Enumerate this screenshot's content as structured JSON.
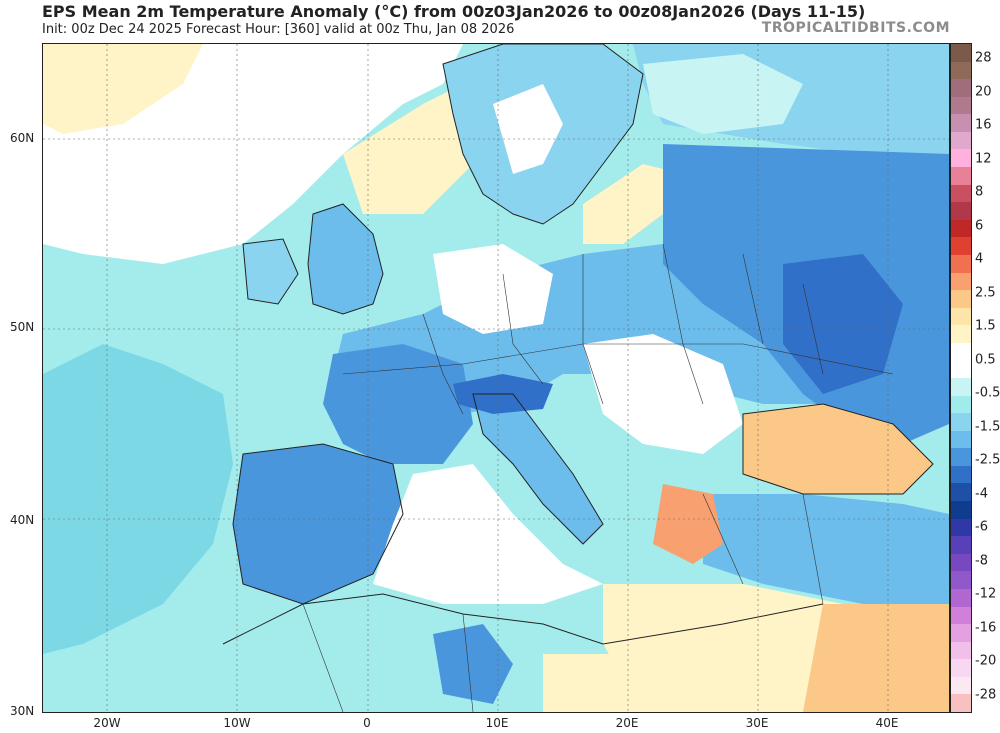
{
  "header": {
    "title": "EPS Mean 2m Temperature Anomaly (°C) from 00z03Jan2026 to 00z08Jan2026 (Days 11-15)",
    "subtitle": "Init: 00z Dec 24 2025   Forecast Hour: [360]   valid at 00z Thu, Jan 08 2026",
    "brand": "TROPICALTIDBITS.COM"
  },
  "axes": {
    "lat_labels": [
      "60N",
      "50N",
      "40N",
      "30N"
    ],
    "lon_labels": [
      "20W",
      "10W",
      "0",
      "10E",
      "20E",
      "30E",
      "40E"
    ]
  },
  "colorbar": {
    "labels": [
      "28",
      "20",
      "16",
      "12",
      "8",
      "6",
      "4",
      "2.5",
      "1.5",
      "0.5",
      "-0.5",
      "-1.5",
      "-2.5",
      "-4",
      "-6",
      "-8",
      "-12",
      "-16",
      "-20",
      "-28"
    ],
    "colors": [
      "#7a5a48",
      "#8f6a58",
      "#a06e7a",
      "#b07a8e",
      "#c890b0",
      "#e0a8cc",
      "#ffb0dd",
      "#e88098",
      "#c85060",
      "#b03848",
      "#c02828",
      "#e04030",
      "#f07050",
      "#f8a070",
      "#fbc888",
      "#fde4a8",
      "#fff3c8",
      "#ffffff",
      "#ffffff",
      "#c8f4f4",
      "#a0ecec",
      "#8ad4f0",
      "#6cbcec",
      "#4a96dc",
      "#3070c8",
      "#1e50a8",
      "#103c90",
      "#3038a8",
      "#5840b8",
      "#7848c0",
      "#9058c8",
      "#b068d0",
      "#d080d8",
      "#e4a0e0",
      "#f0c0e8",
      "#f8d8f0",
      "#fce8f0",
      "#f8c0c0"
    ]
  },
  "legend": {
    "color_meaning": {
      "positive_anomaly": "#fbc888",
      "neutral": "#ffffff",
      "negative_anomaly": "#4a96dc"
    }
  }
}
